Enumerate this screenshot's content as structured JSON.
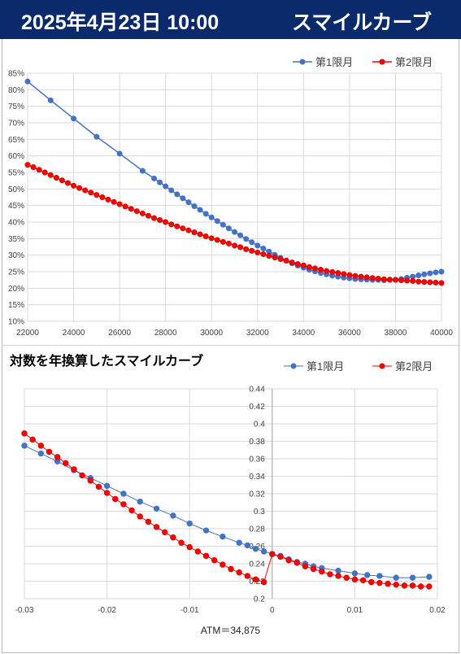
{
  "header": {
    "date_time": "2025年4月23日 10:00",
    "title": "スマイルカーブ"
  },
  "colors": {
    "header_bg": "#0b2a6b",
    "series1": "#4472c4",
    "series2": "#ff0000",
    "series2_marker_edge": "#c00000"
  },
  "chart_data": [
    {
      "type": "line",
      "title": "",
      "xlim": [
        22000,
        40000
      ],
      "ylim": [
        0.1,
        0.85
      ],
      "grid": true,
      "legend_position": "top-right",
      "x_ticks": [
        "22000",
        "24000",
        "26000",
        "28000",
        "30000",
        "32000",
        "34000",
        "36000",
        "38000",
        "40000"
      ],
      "y_ticks": [
        "10%",
        "15%",
        "20%",
        "25%",
        "30%",
        "35%",
        "40%",
        "45%",
        "50%",
        "55%",
        "60%",
        "65%",
        "70%",
        "75%",
        "80%",
        "85%"
      ],
      "series": [
        {
          "name": "第1限月",
          "x": [
            22000,
            23000,
            24000,
            25000,
            26000,
            27000,
            27500,
            27750,
            28000,
            28250,
            28500,
            28750,
            29000,
            29250,
            29500,
            29750,
            30000,
            30250,
            30500,
            30750,
            31000,
            31250,
            31500,
            31750,
            32000,
            32250,
            32500,
            32750,
            33000,
            33250,
            33500,
            33750,
            34000,
            34250,
            34500,
            34750,
            35000,
            35250,
            35500,
            35750,
            36000,
            36250,
            36500,
            36750,
            37000,
            37250,
            37500,
            37750,
            38000,
            38250,
            38500,
            38750,
            39000,
            39250,
            39500,
            39750,
            40000
          ],
          "y": [
            0.825,
            0.768,
            0.713,
            0.658,
            0.607,
            0.555,
            0.532,
            0.52,
            0.508,
            0.496,
            0.484,
            0.472,
            0.46,
            0.448,
            0.437,
            0.425,
            0.414,
            0.403,
            0.392,
            0.381,
            0.37,
            0.36,
            0.349,
            0.339,
            0.329,
            0.32,
            0.311,
            0.301,
            0.292,
            0.284,
            0.275,
            0.268,
            0.262,
            0.256,
            0.251,
            0.246,
            0.242,
            0.238,
            0.235,
            0.232,
            0.23,
            0.228,
            0.227,
            0.226,
            0.225,
            0.225,
            0.224,
            0.225,
            0.226,
            0.228,
            0.232,
            0.235,
            0.239,
            0.242,
            0.245,
            0.248,
            0.25
          ]
        },
        {
          "name": "第2限月",
          "x": [
            22000,
            22250,
            22500,
            22750,
            23000,
            23250,
            23500,
            23750,
            24000,
            24250,
            24500,
            24750,
            25000,
            25250,
            25500,
            25750,
            26000,
            26250,
            26500,
            26750,
            27000,
            27250,
            27500,
            27750,
            28000,
            28250,
            28500,
            28750,
            29000,
            29250,
            29500,
            29750,
            30000,
            30250,
            30500,
            30750,
            31000,
            31250,
            31500,
            31750,
            32000,
            32250,
            32500,
            32750,
            33000,
            33250,
            33500,
            33750,
            34000,
            34250,
            34500,
            34750,
            35000,
            35250,
            35500,
            35750,
            36000,
            36250,
            36500,
            36750,
            37000,
            37250,
            37500,
            37750,
            38000,
            38250,
            38500,
            38750,
            39000,
            39250,
            39500,
            39750,
            40000
          ],
          "y": [
            0.573,
            0.566,
            0.558,
            0.55,
            0.542,
            0.534,
            0.526,
            0.518,
            0.51,
            0.503,
            0.496,
            0.489,
            0.482,
            0.475,
            0.468,
            0.461,
            0.454,
            0.447,
            0.44,
            0.433,
            0.426,
            0.419,
            0.412,
            0.406,
            0.4,
            0.393,
            0.387,
            0.381,
            0.375,
            0.369,
            0.363,
            0.357,
            0.351,
            0.346,
            0.34,
            0.335,
            0.329,
            0.324,
            0.318,
            0.313,
            0.308,
            0.303,
            0.298,
            0.293,
            0.288,
            0.283,
            0.278,
            0.273,
            0.269,
            0.264,
            0.26,
            0.256,
            0.252,
            0.249,
            0.246,
            0.243,
            0.24,
            0.237,
            0.235,
            0.233,
            0.231,
            0.229,
            0.227,
            0.226,
            0.225,
            0.224,
            0.223,
            0.222,
            0.22,
            0.219,
            0.218,
            0.217,
            0.216
          ]
        }
      ]
    },
    {
      "type": "line",
      "title": "対数を年換算したスマイルカーブ",
      "xlim": [
        -0.03,
        0.02
      ],
      "ylim": [
        0.2,
        0.44
      ],
      "grid": true,
      "legend_position": "top-right",
      "x_ticks": [
        "-0.03",
        "-0.02",
        "-0.01",
        "0",
        "0.01",
        "0.02"
      ],
      "y_ticks": [
        "0.2",
        "0.22",
        "0.24",
        "0.26",
        "0.28",
        "0.3",
        "0.32",
        "0.34",
        "0.36",
        "0.38",
        "0.4",
        "0.42",
        "0.44"
      ],
      "annotation": "ATM＝34,875",
      "series": [
        {
          "name": "第1限月",
          "x": [
            -0.03,
            -0.028,
            -0.026,
            -0.024,
            -0.022,
            -0.02,
            -0.018,
            -0.016,
            -0.014,
            -0.012,
            -0.01,
            -0.008,
            -0.006,
            -0.004,
            -0.003,
            -0.002,
            -0.001,
            0.0,
            0.001,
            0.002,
            0.003,
            0.004,
            0.005,
            0.006,
            0.008,
            0.01,
            0.0115,
            0.013,
            0.015,
            0.017,
            0.019
          ],
          "y": [
            0.375,
            0.366,
            0.357,
            0.347,
            0.338,
            0.329,
            0.32,
            0.311,
            0.303,
            0.295,
            0.286,
            0.278,
            0.271,
            0.264,
            0.261,
            0.257,
            0.254,
            0.251,
            0.249,
            0.245,
            0.242,
            0.24,
            0.237,
            0.235,
            0.232,
            0.229,
            0.227,
            0.226,
            0.224,
            0.224,
            0.225
          ]
        },
        {
          "name": "第2限月",
          "x": [
            -0.03,
            -0.029,
            -0.028,
            -0.027,
            -0.026,
            -0.025,
            -0.024,
            -0.023,
            -0.022,
            -0.021,
            -0.02,
            -0.019,
            -0.018,
            -0.017,
            -0.016,
            -0.015,
            -0.014,
            -0.013,
            -0.012,
            -0.011,
            -0.01,
            -0.009,
            -0.008,
            -0.007,
            -0.006,
            -0.005,
            -0.004,
            -0.003,
            -0.002,
            -0.001,
            0.0,
            0.001,
            0.002,
            0.003,
            0.004,
            0.005,
            0.006,
            0.007,
            0.008,
            0.009,
            0.01,
            0.011,
            0.012,
            0.013,
            0.014,
            0.015,
            0.016,
            0.017,
            0.018,
            0.019
          ],
          "y": [
            0.389,
            0.382,
            0.375,
            0.368,
            0.362,
            0.355,
            0.348,
            0.341,
            0.335,
            0.328,
            0.321,
            0.314,
            0.308,
            0.301,
            0.294,
            0.288,
            0.282,
            0.276,
            0.27,
            0.264,
            0.259,
            0.254,
            0.249,
            0.244,
            0.239,
            0.234,
            0.23,
            0.226,
            0.222,
            0.219,
            0.251,
            0.248,
            0.244,
            0.241,
            0.237,
            0.234,
            0.231,
            0.228,
            0.226,
            0.224,
            0.222,
            0.221,
            0.219,
            0.218,
            0.217,
            0.216,
            0.215,
            0.215,
            0.214,
            0.214
          ]
        }
      ]
    }
  ]
}
